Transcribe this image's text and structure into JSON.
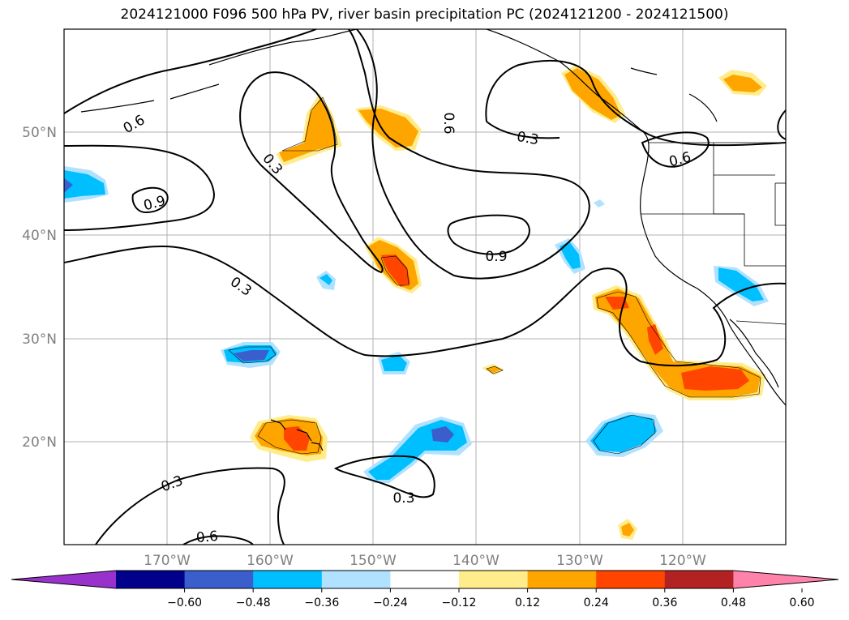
{
  "title": "2024121000 F096 500 hPa PV, river basin precipitation PC (2024121200 - 2024121500)",
  "lat_labels": [
    {
      "text": "50°N",
      "lat": 50
    },
    {
      "text": "40°N",
      "lat": 40
    },
    {
      "text": "30°N",
      "lat": 30
    },
    {
      "text": "20°N",
      "lat": 20
    }
  ],
  "lon_labels": [
    {
      "text": "170°W",
      "lon": -170
    },
    {
      "text": "160°W",
      "lon": -160
    },
    {
      "text": "150°W",
      "lon": -150
    },
    {
      "text": "140°W",
      "lon": -140
    },
    {
      "text": "130°W",
      "lon": -130
    },
    {
      "text": "120°W",
      "lon": -120
    }
  ],
  "contour_labels": [
    "0.6",
    "0.9",
    "0.3",
    "0.6",
    "0.3",
    "0.9",
    "0.3",
    "0.6",
    "0.3",
    "0.6"
  ],
  "colorbar": {
    "colors": [
      "#9932cc",
      "#00008b",
      "#3a5fcd",
      "#00bfff",
      "#b0e2ff",
      "#ffffff",
      "#ffec8b",
      "#ffa500",
      "#ff4500",
      "#b22222",
      "#ff82ab"
    ],
    "ticks": [
      "−0.60",
      "−0.48",
      "−0.36",
      "−0.24",
      "−0.12",
      "0.12",
      "0.24",
      "0.36",
      "0.48",
      "0.60"
    ]
  }
}
